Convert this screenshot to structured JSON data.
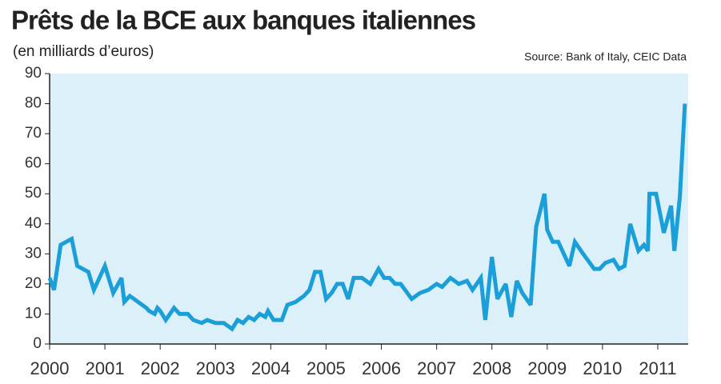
{
  "chart_data": {
    "type": "line",
    "title": "Prêts de la BCE aux banques italiennes",
    "subtitle": "(en milliards d’euros)",
    "source": "Source: Bank of Italy, CEIC Data",
    "x": [
      2000.0,
      2000.08,
      2000.2,
      2000.4,
      2000.5,
      2000.7,
      2000.8,
      2001.0,
      2001.15,
      2001.3,
      2001.35,
      2001.45,
      2001.6,
      2001.75,
      2001.8,
      2001.9,
      2001.95,
      2002.0,
      2002.1,
      2002.25,
      2002.35,
      2002.5,
      2002.6,
      2002.75,
      2002.85,
      2003.0,
      2003.15,
      2003.3,
      2003.4,
      2003.5,
      2003.6,
      2003.7,
      2003.8,
      2003.9,
      2003.95,
      2004.05,
      2004.2,
      2004.3,
      2004.45,
      2004.6,
      2004.7,
      2004.8,
      2004.9,
      2005.0,
      2005.1,
      2005.2,
      2005.3,
      2005.4,
      2005.5,
      2005.65,
      2005.8,
      2005.95,
      2006.05,
      2006.15,
      2006.25,
      2006.35,
      2006.55,
      2006.7,
      2006.85,
      2007.0,
      2007.1,
      2007.25,
      2007.4,
      2007.55,
      2007.65,
      2007.8,
      2007.88,
      2008.0,
      2008.1,
      2008.25,
      2008.35,
      2008.45,
      2008.55,
      2008.7,
      2008.8,
      2008.95,
      2009.0,
      2009.1,
      2009.2,
      2009.4,
      2009.5,
      2009.65,
      2009.85,
      2009.95,
      2010.05,
      2010.2,
      2010.3,
      2010.4,
      2010.5,
      2010.65,
      2010.75,
      2010.82,
      2010.85,
      2010.97,
      2011.11,
      2011.24,
      2011.3,
      2011.4,
      2011.49
    ],
    "series": [
      {
        "name": "Prêts",
        "color": "#1a9fd8",
        "values": [
          22,
          18,
          33,
          35,
          26,
          24,
          18,
          26,
          17,
          22,
          14,
          16,
          14,
          12,
          11,
          10,
          12,
          11,
          8,
          12,
          10,
          10,
          8,
          7,
          8,
          7,
          7,
          5,
          8,
          7,
          9,
          8,
          10,
          9,
          11,
          8,
          8,
          13,
          14,
          16,
          18,
          24,
          24,
          15,
          17,
          20,
          20,
          15,
          22,
          22,
          20,
          25,
          22,
          22,
          20,
          20,
          15,
          17,
          18,
          20,
          19,
          22,
          20,
          21,
          18,
          22,
          8,
          29,
          15,
          20,
          9,
          21,
          17,
          13,
          39,
          50,
          38,
          34,
          34,
          26,
          34,
          30,
          25,
          25,
          27,
          28,
          25,
          26,
          40,
          31,
          33,
          31,
          50,
          50,
          37,
          46,
          31,
          49,
          80
        ]
      }
    ],
    "xlim": [
      2000,
      2011.55
    ],
    "xticks": [
      2000,
      2001,
      2002,
      2003,
      2004,
      2005,
      2006,
      2007,
      2008,
      2009,
      2010,
      2011
    ],
    "ylim": [
      0,
      90
    ],
    "yticks": [
      0,
      10,
      20,
      30,
      40,
      50,
      60,
      70,
      80,
      90
    ],
    "plot_background": "#dcf0fa"
  }
}
